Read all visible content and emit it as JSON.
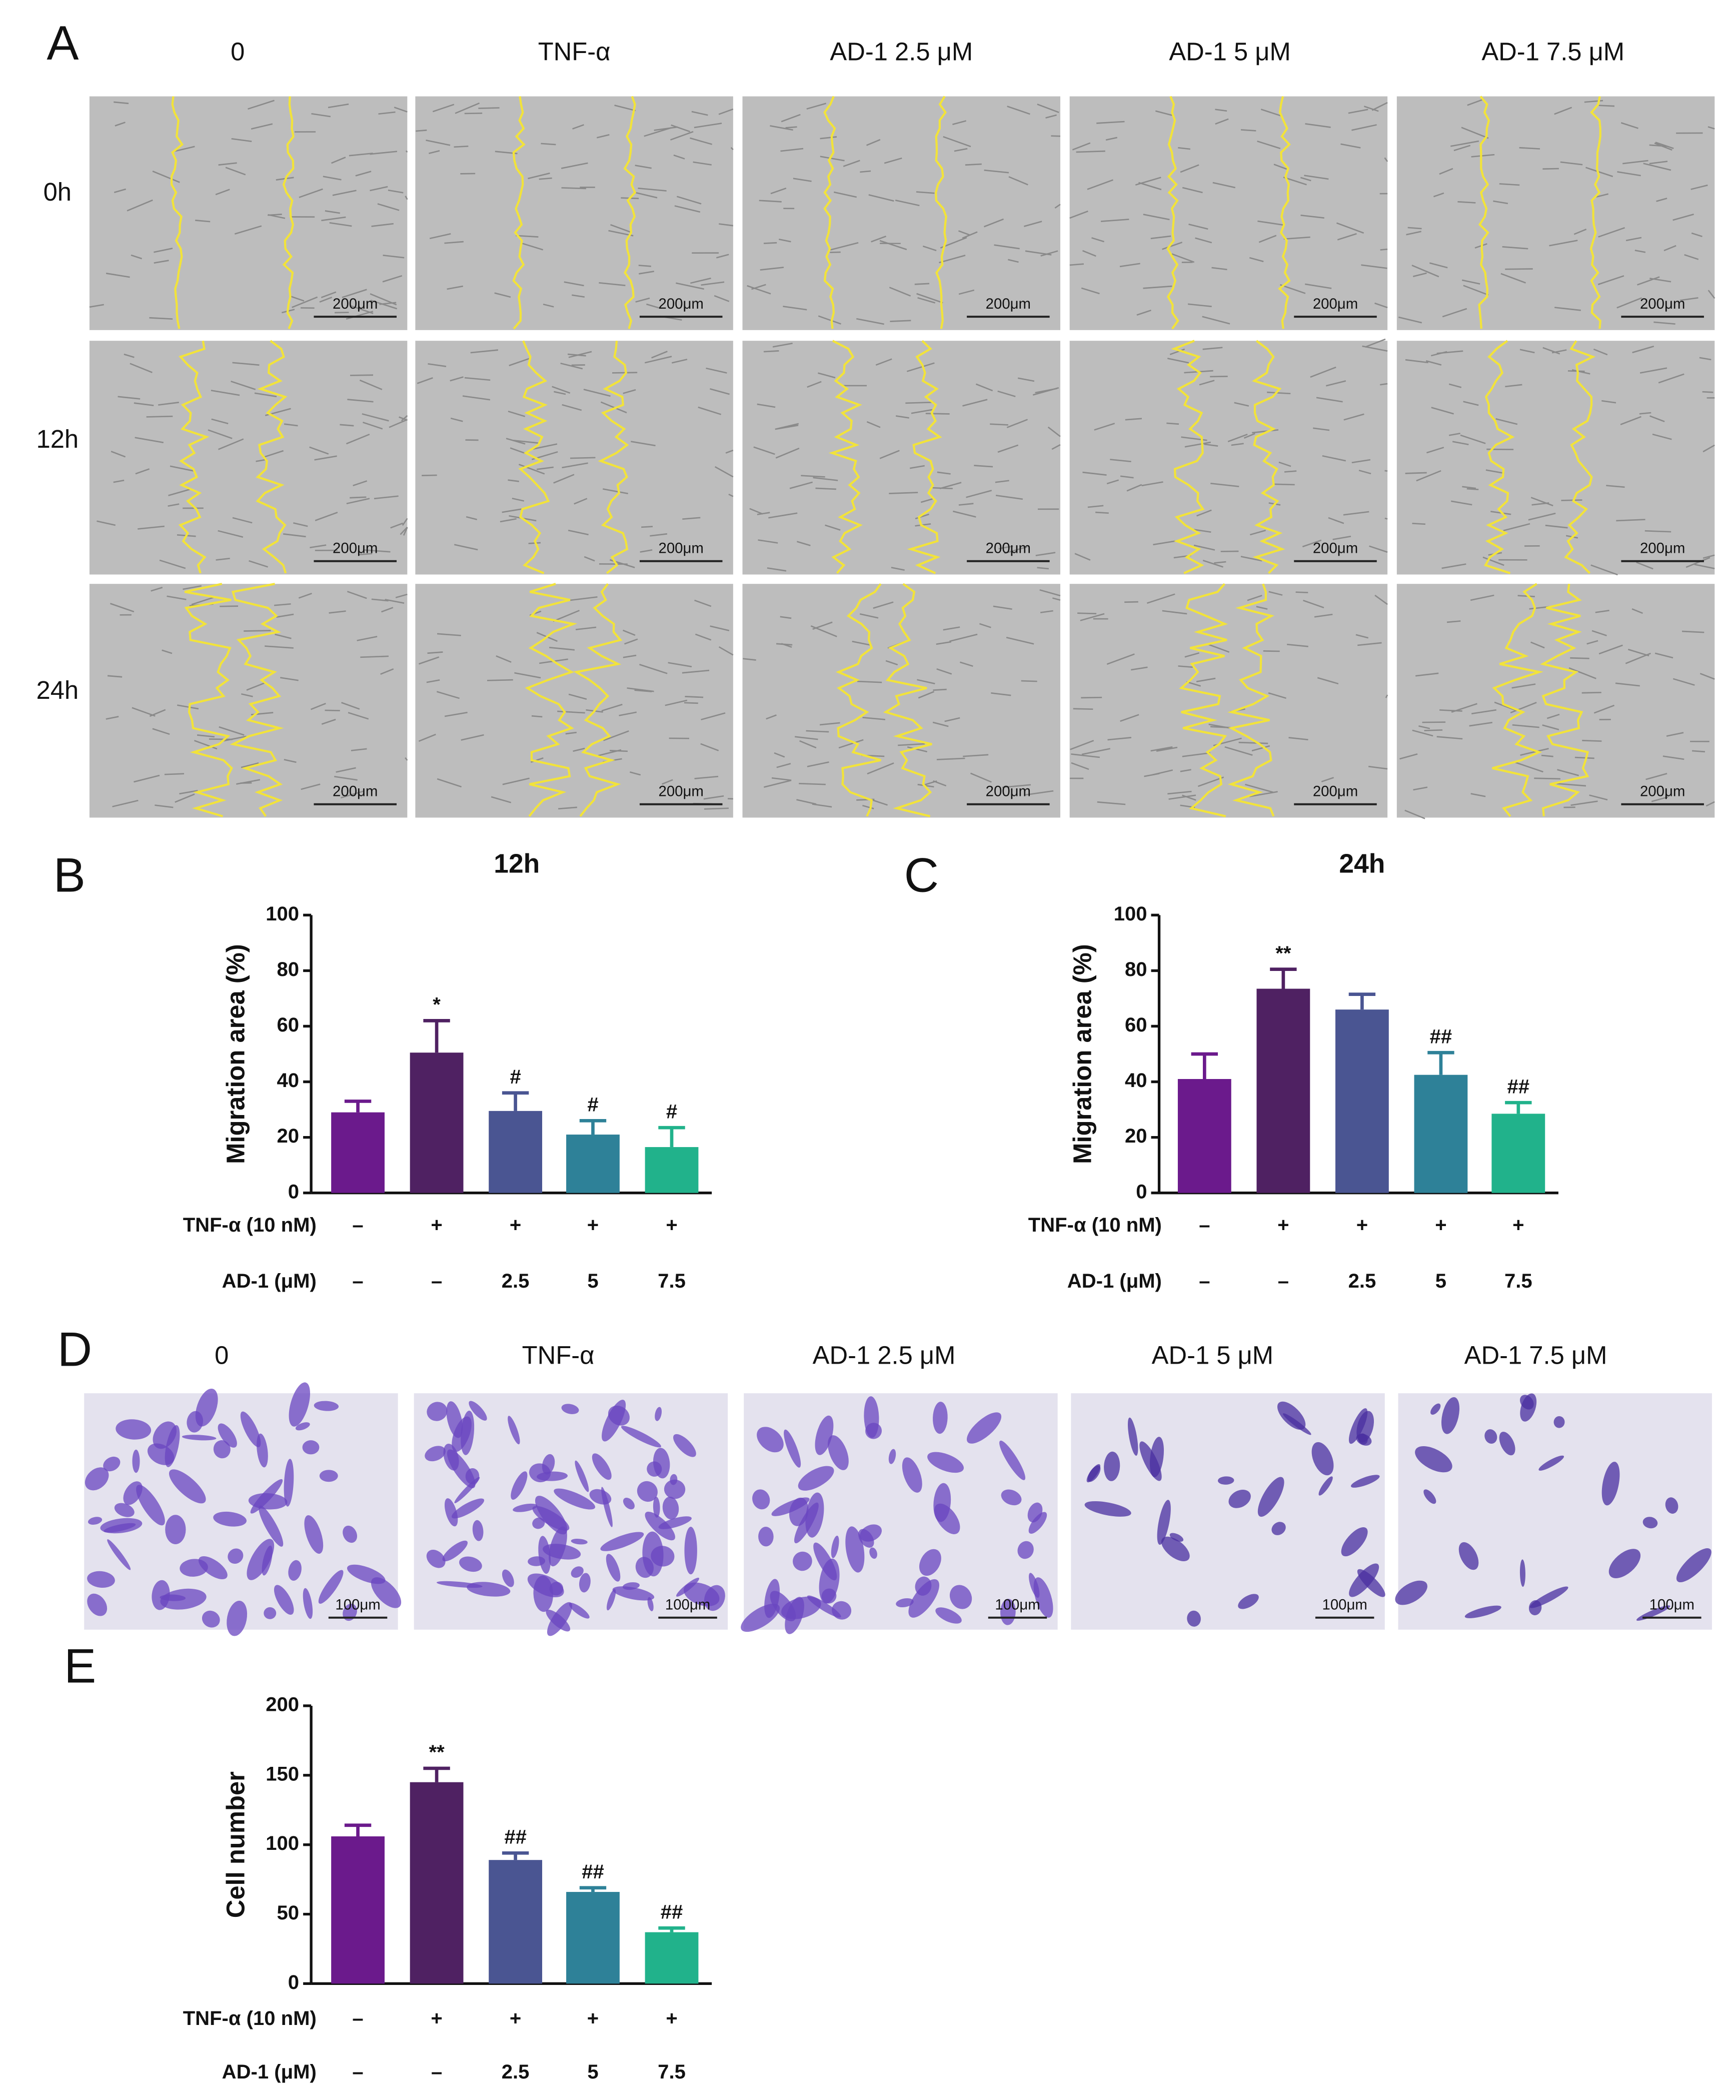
{
  "panel_labels": [
    "A",
    "B",
    "C",
    "D",
    "E"
  ],
  "panel_a": {
    "columns": [
      "0",
      "TNF-α",
      "AD-1 2.5 μM",
      "AD-1 5 μM",
      "AD-1 7.5 μM"
    ],
    "rows": [
      "0h",
      "12h",
      "24h"
    ],
    "scale_bar": "200μm"
  },
  "panel_d": {
    "columns": [
      "0",
      "TNF-α",
      "AD-1 2.5 μM",
      "AD-1 5 μM",
      "AD-1 7.5 μM"
    ],
    "scale_bar": "100μm"
  },
  "chart_data": [
    {
      "type": "bar",
      "title": "12h",
      "y_label": "Migration area (%)",
      "conditions": [
        {
          "name": "TNF-α (10 nM)",
          "labels": [
            "–",
            "+",
            "+",
            "+",
            "+"
          ]
        },
        {
          "name": "AD-1 (μM)",
          "labels": [
            "–",
            "–",
            "2.5",
            "5",
            "7.5"
          ]
        }
      ],
      "values": [
        29,
        50.5,
        29.5,
        21,
        16.5
      ],
      "errors": [
        4,
        11.5,
        6.5,
        5,
        7
      ],
      "significance": [
        null,
        "*",
        "#",
        "#",
        "#"
      ],
      "colors": [
        "#6b1a8c",
        "#4f2162",
        "#4a5592",
        "#2e8198",
        "#21b28b"
      ],
      "ylim": [
        0,
        100
      ],
      "yticks": [
        0,
        20,
        40,
        60,
        80,
        100
      ],
      "grid": false
    },
    {
      "type": "bar",
      "title": "24h",
      "y_label": "Migration area (%)",
      "conditions": [
        {
          "name": "TNF-α (10 nM)",
          "labels": [
            "–",
            "+",
            "+",
            "+",
            "+"
          ]
        },
        {
          "name": "AD-1 (μM)",
          "labels": [
            "–",
            "–",
            "2.5",
            "5",
            "7.5"
          ]
        }
      ],
      "values": [
        41,
        73.5,
        66,
        42.5,
        28.5
      ],
      "errors": [
        9,
        7,
        5.5,
        8,
        4
      ],
      "significance": [
        null,
        "**",
        null,
        "##",
        "##"
      ],
      "colors": [
        "#6b1a8c",
        "#4f2162",
        "#4a5592",
        "#2e8198",
        "#21b28b"
      ],
      "ylim": [
        0,
        100
      ],
      "yticks": [
        0,
        20,
        40,
        60,
        80,
        100
      ],
      "grid": false
    },
    {
      "type": "bar",
      "y_label": "Cell number",
      "conditions": [
        {
          "name": "TNF-α (10 nM)",
          "labels": [
            "–",
            "+",
            "+",
            "+",
            "+"
          ]
        },
        {
          "name": "AD-1 (μM)",
          "labels": [
            "–",
            "–",
            "2.5",
            "5",
            "7.5"
          ]
        }
      ],
      "values": [
        106,
        145,
        89,
        66,
        37
      ],
      "errors": [
        8,
        10,
        5,
        3,
        3
      ],
      "significance": [
        null,
        "**",
        "##",
        "##",
        "##"
      ],
      "colors": [
        "#6b1a8c",
        "#4f2162",
        "#4a5592",
        "#2e8198",
        "#21b28b"
      ],
      "ylim": [
        0,
        200
      ],
      "yticks": [
        0,
        50,
        100,
        150,
        200
      ],
      "grid": false
    }
  ]
}
